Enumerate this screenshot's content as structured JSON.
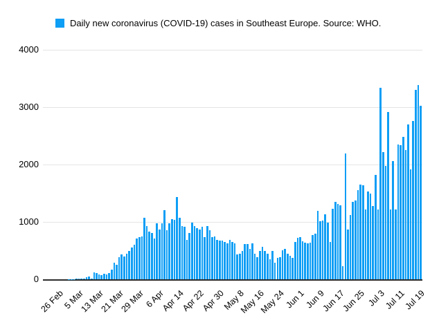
{
  "legend": {
    "label": "Daily new coronavirus (COVID-19) cases in Southeast Europe. Source: WHO."
  },
  "colors": {
    "series": "#0d9ef5",
    "gridline": "#e4e4e4",
    "axis": "#2b2b2b",
    "text": "#000000",
    "background": "#ffffff"
  },
  "chart_data": {
    "type": "bar",
    "title": "Daily new coronavirus (COVID-19) cases in Southeast Europe. Source: WHO.",
    "legend_position": "top",
    "grid": true,
    "ylim": [
      0,
      4000
    ],
    "y_ticks": [
      0,
      1000,
      2000,
      3000,
      4000
    ],
    "x_start": "26 Feb",
    "x_tick_every": 8,
    "x_tick_labels": [
      "26 Feb",
      "5 Mar",
      "13 Mar",
      "21 Mar",
      "29 Mar",
      "6 Apr",
      "Apr 14",
      "Apr 22",
      "Apr 30",
      "May 8",
      "May 16",
      "May 24",
      "Jun 1",
      "Jun 9",
      "Jun 17",
      "Jun 25",
      "Jul 3",
      "Jul 11",
      "Jul 19"
    ],
    "values": [
      0,
      0,
      2,
      3,
      4,
      3,
      5,
      6,
      5,
      8,
      10,
      10,
      12,
      36,
      48,
      10,
      115,
      110,
      90,
      70,
      95,
      80,
      110,
      170,
      290,
      250,
      390,
      430,
      400,
      450,
      500,
      560,
      600,
      710,
      730,
      750,
      1070,
      930,
      830,
      810,
      710,
      970,
      870,
      970,
      1210,
      850,
      970,
      1050,
      1040,
      1430,
      1070,
      930,
      910,
      690,
      810,
      990,
      930,
      890,
      870,
      910,
      730,
      930,
      850,
      730,
      750,
      690,
      670,
      670,
      650,
      630,
      690,
      650,
      630,
      430,
      450,
      490,
      610,
      610,
      530,
      630,
      450,
      390,
      490,
      570,
      490,
      450,
      350,
      490,
      290,
      370,
      390,
      510,
      530,
      450,
      410,
      370,
      650,
      720,
      730,
      660,
      640,
      630,
      640,
      770,
      790,
      1190,
      1010,
      1020,
      1130,
      990,
      650,
      1225,
      1355,
      1315,
      1295,
      230,
      2190,
      870,
      1115,
      1355,
      1375,
      1555,
      1655,
      1635,
      1215,
      1535,
      1495,
      1275,
      1815,
      1215,
      3340,
      2220,
      1975,
      2920,
      1215,
      2055,
      1215,
      2355,
      2340,
      2480,
      2255,
      2700,
      1915,
      2760,
      3300,
      3390,
      3020
    ]
  }
}
